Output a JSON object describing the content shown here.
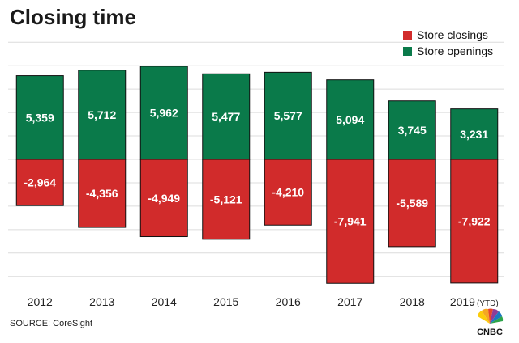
{
  "chart_data": {
    "type": "bar",
    "title": "Closing time",
    "categories": [
      "2012",
      "2013",
      "2014",
      "2015",
      "2016",
      "2017",
      "2018",
      "2019"
    ],
    "category_suffix": {
      "2019": "(YTD)"
    },
    "series": [
      {
        "name": "Store openings",
        "color": "#0a7a4a",
        "values": [
          5359,
          5712,
          5962,
          5477,
          5577,
          5094,
          3745,
          3231
        ],
        "labels": [
          "5,359",
          "5,712",
          "5,962",
          "5,477",
          "5,577",
          "5,094",
          "3,745",
          "3,231"
        ]
      },
      {
        "name": "Store closings",
        "color": "#d12b2b",
        "values": [
          -2964,
          -4356,
          -4949,
          -5121,
          -4210,
          -7941,
          -5589,
          -7922
        ],
        "labels": [
          "-2,964",
          "-4,356",
          "-4,949",
          "-5,121",
          "-4,210",
          "-7,941",
          "-5,589",
          "-7,922"
        ]
      }
    ],
    "stacked": true,
    "ylim": [
      -8000,
      7500
    ],
    "grid": true,
    "legend_position": "top-right",
    "legend_order": [
      "Store closings",
      "Store openings"
    ]
  },
  "source": "SOURCE: CoreSight",
  "logo": {
    "text": "CNBC",
    "icon": "peacock-logo"
  }
}
